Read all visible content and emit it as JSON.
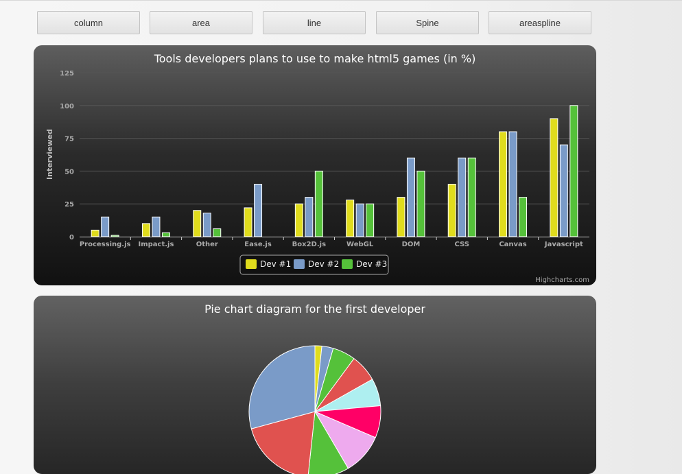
{
  "buttons": [
    "column",
    "area",
    "line",
    "Spine",
    "areaspline"
  ],
  "colors": {
    "dev1": "#e0dc1d",
    "dev2": "#7a9bc8",
    "dev3": "#55c13a",
    "pie": [
      "#e0dc1d",
      "#7a9bc8",
      "#55c13a",
      "#e0524f",
      "#aeeff0",
      "#ff0066",
      "#eeaaee",
      "#55c13a",
      "#e0524f",
      "#7a9bc8"
    ]
  },
  "chart_data": [
    {
      "type": "bar",
      "title": "Tools developers plans to use to make html5 games (in %)",
      "xlabel": "",
      "ylabel": "Interviewed",
      "ylim": [
        0,
        125
      ],
      "yticks": [
        0,
        25,
        50,
        75,
        100,
        125
      ],
      "grid": true,
      "categories": [
        "Processing.js",
        "Impact.js",
        "Other",
        "Ease.js",
        "Box2D.js",
        "WebGL",
        "DOM",
        "CSS",
        "Canvas",
        "Javascript"
      ],
      "series": [
        {
          "name": "Dev #1",
          "values": [
            5,
            10,
            20,
            22,
            25,
            28,
            30,
            40,
            80,
            90
          ]
        },
        {
          "name": "Dev #2",
          "values": [
            15,
            15,
            18,
            40,
            30,
            25,
            60,
            60,
            80,
            70
          ]
        },
        {
          "name": "Dev #3",
          "values": [
            1,
            3,
            6,
            0,
            50,
            25,
            50,
            60,
            30,
            100
          ]
        }
      ],
      "legend_position": "bottom-center",
      "credits": "Highcharts.com"
    },
    {
      "type": "pie",
      "title": "Pie chart diagram for the first developer",
      "values": [
        1.5,
        2.5,
        5,
        6,
        6,
        7,
        9,
        9,
        17,
        26
      ]
    }
  ]
}
